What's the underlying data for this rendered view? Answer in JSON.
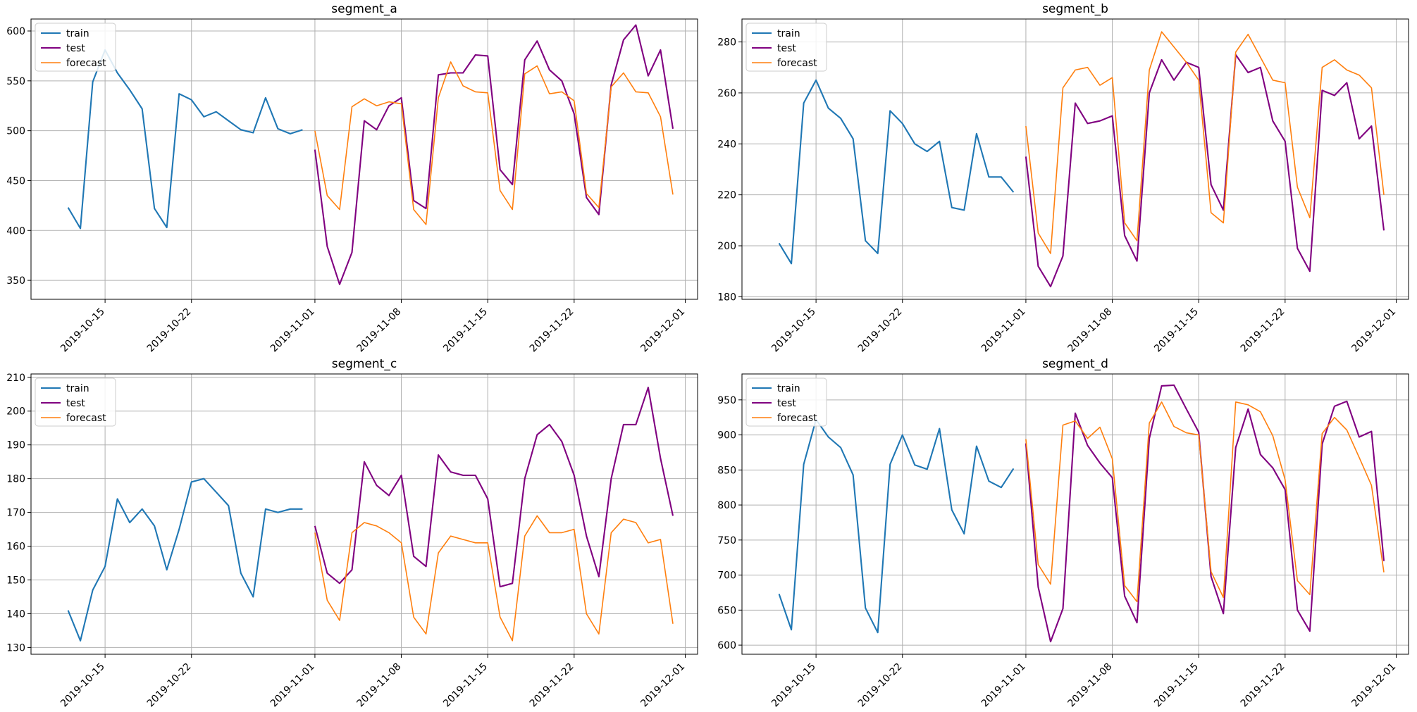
{
  "colors": {
    "train": "#1f77b4",
    "test": "#800080",
    "forecast": "#ff7f0e",
    "grid": "#b0b0b0",
    "axis": "#000000"
  },
  "chart_data": [
    {
      "type": "line",
      "title": "segment_a",
      "xlim": [
        "2019-10-09",
        "2019-12-02"
      ],
      "ylim": [
        331,
        612
      ],
      "grid": true,
      "legend_placement": "top-left",
      "xticks": [
        "2019-10-15",
        "2019-10-22",
        "2019-11-01",
        "2019-11-08",
        "2019-11-15",
        "2019-11-22",
        "2019-12-01"
      ],
      "yticks": [
        350,
        400,
        450,
        500,
        550,
        600
      ],
      "series": [
        {
          "name": "train",
          "start": "2019-10-12",
          "values": [
            423,
            402,
            549,
            581,
            558,
            541,
            522,
            422,
            403,
            537,
            531,
            514,
            519,
            510,
            501,
            498,
            533,
            502,
            497,
            501
          ]
        },
        {
          "name": "test",
          "start": "2019-11-01",
          "values": [
            481,
            384,
            346,
            378,
            510,
            501,
            525,
            533,
            430,
            422,
            556,
            558,
            558,
            576,
            575,
            461,
            446,
            571,
            590,
            561,
            550,
            517,
            433,
            416,
            546,
            591,
            606,
            555,
            581,
            502
          ]
        },
        {
          "name": "forecast",
          "start": "2019-11-01",
          "values": [
            500,
            435,
            421,
            524,
            532,
            525,
            529,
            527,
            421,
            406,
            533,
            569,
            545,
            539,
            538,
            440,
            421,
            557,
            565,
            537,
            539,
            530,
            437,
            423,
            544,
            558,
            539,
            538,
            514,
            436
          ]
        }
      ]
    },
    {
      "type": "line",
      "title": "segment_b",
      "xlim": [
        "2019-10-09",
        "2019-12-02"
      ],
      "ylim": [
        179,
        289
      ],
      "grid": true,
      "legend_placement": "top-left",
      "xticks": [
        "2019-10-15",
        "2019-10-22",
        "2019-11-01",
        "2019-11-08",
        "2019-11-15",
        "2019-11-22",
        "2019-12-01"
      ],
      "yticks": [
        180,
        200,
        220,
        240,
        260,
        280
      ],
      "series": [
        {
          "name": "train",
          "start": "2019-10-12",
          "values": [
            201,
            193,
            256,
            265,
            254,
            250,
            242,
            202,
            197,
            253,
            248,
            240,
            237,
            241,
            215,
            214,
            244,
            227,
            227,
            221
          ]
        },
        {
          "name": "test",
          "start": "2019-11-01",
          "values": [
            235,
            192,
            184,
            196,
            256,
            248,
            249,
            251,
            204,
            194,
            260,
            273,
            265,
            272,
            270,
            224,
            214,
            275,
            268,
            270,
            249,
            241,
            199,
            190,
            261,
            259,
            264,
            242,
            247,
            206
          ]
        },
        {
          "name": "forecast",
          "start": "2019-11-01",
          "values": [
            247,
            205,
            197,
            262,
            269,
            270,
            263,
            266,
            209,
            202,
            269,
            284,
            278,
            272,
            265,
            213,
            209,
            276,
            283,
            274,
            265,
            264,
            223,
            211,
            270,
            273,
            269,
            267,
            262,
            220
          ]
        }
      ]
    },
    {
      "type": "line",
      "title": "segment_c",
      "xlim": [
        "2019-10-09",
        "2019-12-02"
      ],
      "ylim": [
        128,
        211
      ],
      "grid": true,
      "legend_placement": "top-left",
      "xticks": [
        "2019-10-15",
        "2019-10-22",
        "2019-11-01",
        "2019-11-08",
        "2019-11-15",
        "2019-11-22",
        "2019-12-01"
      ],
      "yticks": [
        130,
        140,
        150,
        160,
        170,
        180,
        190,
        200,
        210
      ],
      "series": [
        {
          "name": "train",
          "start": "2019-10-12",
          "values": [
            141,
            132,
            147,
            154,
            174,
            167,
            171,
            166,
            153,
            165,
            179,
            180,
            176,
            172,
            152,
            145,
            171,
            170,
            171,
            171
          ]
        },
        {
          "name": "test",
          "start": "2019-11-01",
          "values": [
            166,
            152,
            149,
            153,
            185,
            178,
            175,
            181,
            157,
            154,
            187,
            182,
            181,
            181,
            174,
            148,
            149,
            180,
            193,
            196,
            191,
            181,
            163,
            151,
            180,
            196,
            196,
            207,
            186,
            169
          ]
        },
        {
          "name": "forecast",
          "start": "2019-11-01",
          "values": [
            164,
            144,
            138,
            164,
            167,
            166,
            164,
            161,
            139,
            134,
            158,
            163,
            162,
            161,
            161,
            139,
            132,
            163,
            169,
            164,
            164,
            165,
            140,
            134,
            164,
            168,
            167,
            161,
            162,
            137
          ]
        }
      ]
    },
    {
      "type": "line",
      "title": "segment_d",
      "xlim": [
        "2019-10-09",
        "2019-12-02"
      ],
      "ylim": [
        587,
        987
      ],
      "grid": true,
      "legend_placement": "top-left",
      "xticks": [
        "2019-10-15",
        "2019-10-22",
        "2019-11-01",
        "2019-11-08",
        "2019-11-15",
        "2019-11-22",
        "2019-12-01"
      ],
      "yticks": [
        600,
        650,
        700,
        750,
        800,
        850,
        900,
        950
      ],
      "series": [
        {
          "name": "train",
          "start": "2019-10-12",
          "values": [
            673,
            622,
            858,
            922,
            897,
            882,
            843,
            653,
            618,
            858,
            900,
            857,
            851,
            909,
            793,
            759,
            884,
            834,
            825,
            852
          ]
        },
        {
          "name": "test",
          "start": "2019-11-01",
          "values": [
            888,
            683,
            605,
            652,
            931,
            885,
            860,
            839,
            670,
            632,
            895,
            970,
            971,
            937,
            904,
            698,
            645,
            882,
            937,
            872,
            853,
            822,
            650,
            620,
            887,
            941,
            948,
            897,
            905,
            720
          ]
        },
        {
          "name": "forecast",
          "start": "2019-11-01",
          "values": [
            894,
            715,
            687,
            914,
            920,
            895,
            911,
            866,
            685,
            662,
            917,
            947,
            912,
            903,
            900,
            705,
            668,
            947,
            943,
            933,
            899,
            836,
            692,
            672,
            902,
            925,
            907,
            868,
            828,
            704
          ]
        }
      ]
    }
  ]
}
